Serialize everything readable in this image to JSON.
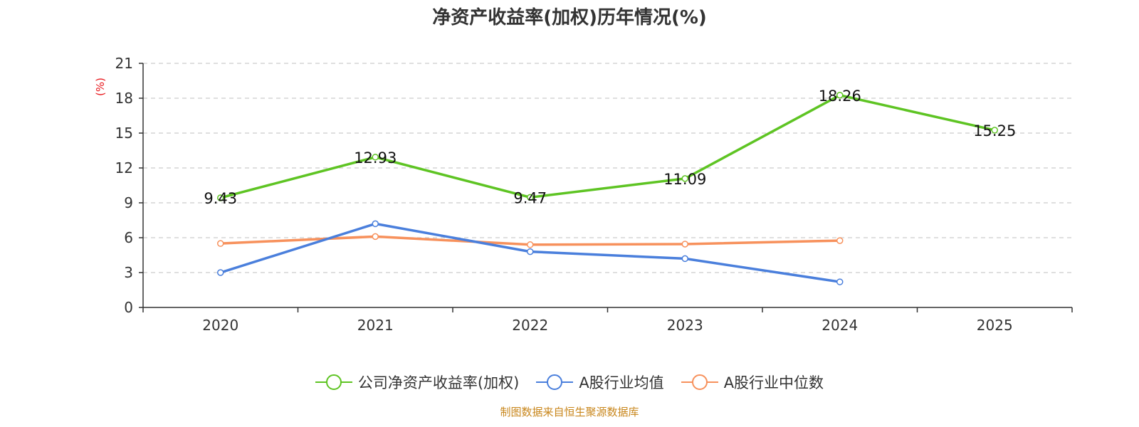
{
  "chart_data": {
    "type": "line",
    "title": "净资产收益率(加权)历年情况(%)",
    "ylabel": "(%)",
    "xlabel": "",
    "categories": [
      "2020",
      "2021",
      "2022",
      "2023",
      "2024",
      "2025"
    ],
    "ylim": [
      0,
      21
    ],
    "yticks": [
      0,
      3,
      6,
      9,
      12,
      15,
      18,
      21
    ],
    "grid": true,
    "legend_position": "bottom-center",
    "series": [
      {
        "name": "公司净资产收益率(加权)",
        "color": "#5ec423",
        "values": [
          9.43,
          12.93,
          9.47,
          11.09,
          18.26,
          15.25
        ],
        "labels": [
          "9.43",
          "12.93",
          "9.47",
          "11.09",
          "18.26",
          "15.25"
        ]
      },
      {
        "name": "A股行业均值",
        "color": "#4a7fdc",
        "values": [
          3.0,
          7.2,
          4.8,
          4.2,
          2.2,
          null
        ]
      },
      {
        "name": "A股行业中位数",
        "color": "#f7915c",
        "values": [
          5.5,
          6.1,
          5.4,
          5.45,
          5.75,
          null
        ]
      }
    ],
    "source": "制图数据来自恒生聚源数据库",
    "source_color": "#c8861b",
    "ylabel_color": "#e8161b"
  }
}
